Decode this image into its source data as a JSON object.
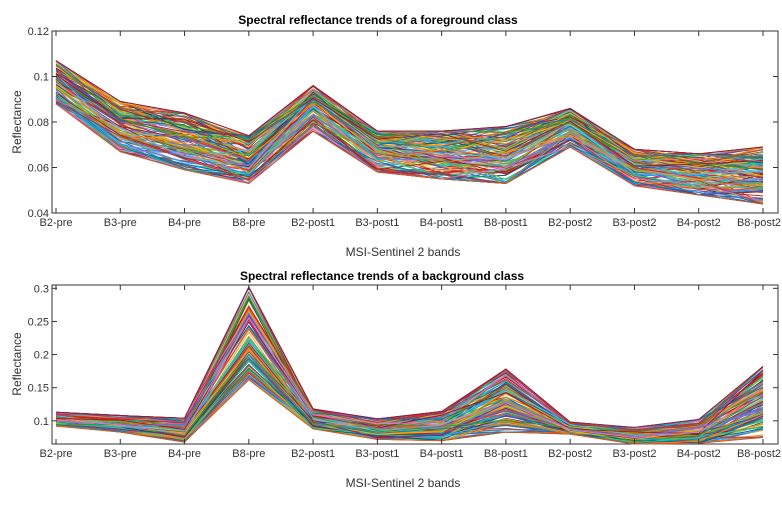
{
  "chart_data": [
    {
      "type": "line",
      "title": "Spectral reflectance trends of a foreground class",
      "xlabel": "MSI-Sentinel 2 bands",
      "ylabel": "Reflectance",
      "categories": [
        "B2-pre",
        "B3-pre",
        "B4-pre",
        "B8-pre",
        "B2-post1",
        "B3-post1",
        "B4-post1",
        "B8-post1",
        "B2-post2",
        "B3-post2",
        "B4-post2",
        "B8-post2"
      ],
      "ylim": [
        0.04,
        0.12
      ],
      "yticks": [
        "0.04",
        "0.06",
        "0.08",
        "0.1",
        "0.12"
      ],
      "grid": false,
      "legend": "none",
      "envelope": {
        "min": [
          0.088,
          0.067,
          0.059,
          0.053,
          0.076,
          0.058,
          0.055,
          0.053,
          0.069,
          0.052,
          0.048,
          0.044
        ],
        "max": [
          0.107,
          0.089,
          0.084,
          0.074,
          0.096,
          0.076,
          0.076,
          0.078,
          0.086,
          0.068,
          0.066,
          0.069
        ],
        "typical": [
          0.096,
          0.078,
          0.071,
          0.063,
          0.088,
          0.068,
          0.066,
          0.065,
          0.078,
          0.06,
          0.058,
          0.056
        ]
      }
    },
    {
      "type": "line",
      "title": "Spectral reflectance trends of a background class",
      "xlabel": "MSI-Sentinel 2 bands",
      "ylabel": "Reflectance",
      "categories": [
        "B2-pre",
        "B3-pre",
        "B4-pre",
        "B8-pre",
        "B2-post1",
        "B3-post1",
        "B4-post1",
        "B8-post1",
        "B2-post2",
        "B3-post2",
        "B4-post2",
        "B8-post2"
      ],
      "ylim": [
        0.065,
        0.305
      ],
      "yticks": [
        "0.1",
        "0.15",
        "0.2",
        "0.25",
        "0.3"
      ],
      "grid": false,
      "legend": "none",
      "envelope": {
        "min": [
          0.092,
          0.083,
          0.068,
          0.162,
          0.088,
          0.072,
          0.07,
          0.083,
          0.08,
          0.065,
          0.066,
          0.075
        ],
        "max": [
          0.113,
          0.108,
          0.104,
          0.302,
          0.118,
          0.103,
          0.114,
          0.178,
          0.098,
          0.09,
          0.102,
          0.182
        ],
        "typical": [
          0.102,
          0.095,
          0.084,
          0.22,
          0.1,
          0.085,
          0.09,
          0.128,
          0.088,
          0.077,
          0.081,
          0.13
        ]
      }
    }
  ]
}
